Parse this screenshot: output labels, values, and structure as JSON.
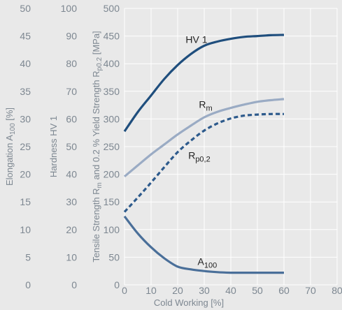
{
  "chart_data": {
    "type": "line",
    "xlabel": "Cold Working [%]",
    "x_ticks": [
      0,
      10,
      20,
      30,
      40,
      50,
      60,
      70,
      80
    ],
    "xlim": [
      0,
      80
    ],
    "grid": true,
    "axes": {
      "elongation": {
        "label_main": "Elongation A",
        "label_sub": "100",
        "label_tail": " [%]",
        "ticks": [
          0,
          5,
          10,
          15,
          20,
          25,
          30,
          35,
          40,
          45,
          50
        ],
        "ylim": [
          0,
          50
        ]
      },
      "hardness": {
        "label": "Hardness HV 1",
        "ticks": [
          0,
          10,
          20,
          30,
          40,
          50,
          60,
          70,
          80,
          90,
          100
        ],
        "ylim": [
          0,
          100
        ]
      },
      "strength": {
        "label_part1": "Tensile Strength R",
        "label_sub1": "m",
        "label_part2": " and 0.2 % Yield Strength R",
        "label_sub2": "p0.2",
        "label_tail": " [MPa]",
        "ticks": [
          0,
          50,
          100,
          150,
          200,
          250,
          300,
          350,
          400,
          450,
          500
        ],
        "ylim": [
          0,
          500
        ]
      }
    },
    "series": [
      {
        "key": "hv1",
        "axis": "hardness",
        "label_main": "HV 1",
        "label_sub": "",
        "label_x": 23,
        "label_y": 87.5,
        "color": "#1f4e7d",
        "dash": "",
        "x": [
          0,
          5,
          10,
          15,
          20,
          25,
          30,
          35,
          40,
          45,
          50,
          55,
          60
        ],
        "y": [
          55.5,
          62.5,
          68.5,
          74.5,
          79.5,
          83.5,
          86.5,
          88.0,
          89.0,
          89.7,
          90.0,
          90.3,
          90.4
        ]
      },
      {
        "key": "rm",
        "axis": "strength",
        "label_main": "R",
        "label_sub": "m",
        "label_x": 28,
        "label_y": 320,
        "color": "#9aabc4",
        "dash": "",
        "x": [
          0,
          5,
          10,
          15,
          20,
          25,
          30,
          35,
          40,
          45,
          50,
          55,
          60
        ],
        "y": [
          196,
          216,
          236,
          254,
          272,
          288,
          303,
          313,
          320,
          326,
          331,
          334,
          336
        ]
      },
      {
        "key": "rp02",
        "axis": "strength",
        "label_main": "R",
        "label_sub": "p0,2",
        "label_x": 24,
        "label_y": 228,
        "color": "#2d5a8c",
        "dash": "6,4",
        "x": [
          0,
          5,
          10,
          15,
          20,
          25,
          30,
          35,
          40,
          45,
          50,
          55,
          60
        ],
        "y": [
          132,
          158,
          185,
          213,
          240,
          261,
          279,
          292,
          301,
          306,
          308,
          309,
          309
        ]
      },
      {
        "key": "a100",
        "axis": "elongation",
        "label_main": "A",
        "label_sub": "100",
        "label_x": 27.5,
        "label_y": 3.6,
        "color": "#4a6f99",
        "dash": "",
        "x": [
          0,
          5,
          10,
          15,
          20,
          25,
          30,
          35,
          40,
          45,
          50,
          55,
          60
        ],
        "y": [
          12.4,
          9.3,
          6.8,
          4.8,
          3.3,
          2.8,
          2.5,
          2.3,
          2.2,
          2.2,
          2.2,
          2.2,
          2.2
        ]
      }
    ]
  }
}
